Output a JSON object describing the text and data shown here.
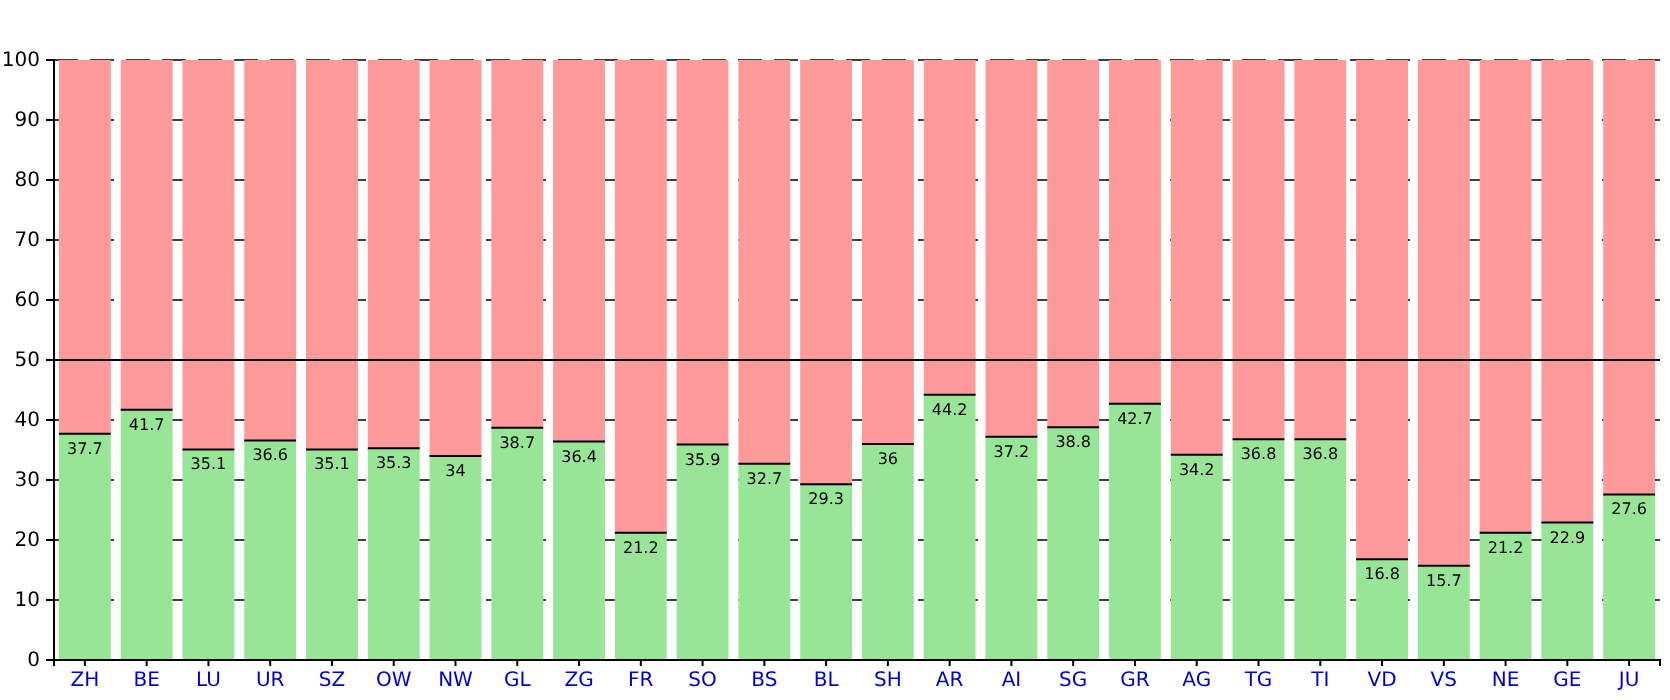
{
  "chart_data": {
    "type": "bar",
    "stacked": true,
    "categories": [
      "ZH",
      "BE",
      "LU",
      "UR",
      "SZ",
      "OW",
      "NW",
      "GL",
      "ZG",
      "FR",
      "SO",
      "BS",
      "BL",
      "SH",
      "AR",
      "AI",
      "SG",
      "GR",
      "AG",
      "TG",
      "TI",
      "VD",
      "VS",
      "NE",
      "GE",
      "JU"
    ],
    "series": [
      {
        "color": "#98e598",
        "values": [
          37.7,
          41.7,
          35.1,
          36.6,
          35.1,
          35.3,
          34,
          38.7,
          36.4,
          21.2,
          35.9,
          32.7,
          29.3,
          36,
          44.2,
          37.2,
          38.8,
          42.7,
          34.2,
          36.8,
          36.8,
          16.8,
          15.7,
          21.2,
          22.9,
          27.6
        ],
        "value_labels": [
          "37.7",
          "41.7",
          "35.1",
          "36.6",
          "35.1",
          "35.3",
          "34",
          "38.7",
          "36.4",
          "21.2",
          "35.9",
          "32.7",
          "29.3",
          "36",
          "44.2",
          "37.2",
          "38.8",
          "42.7",
          "34.2",
          "36.8",
          "36.8",
          "16.8",
          "15.7",
          "21.2",
          "22.9",
          "27.6"
        ]
      },
      {
        "color": "#ff9a9a",
        "values": [
          62.3,
          58.3,
          64.9,
          63.4,
          64.9,
          64.7,
          66,
          61.3,
          63.6,
          78.8,
          64.1,
          67.3,
          70.7,
          64,
          55.8,
          62.8,
          61.2,
          57.3,
          65.8,
          63.2,
          63.2,
          83.2,
          84.3,
          78.8,
          77.1,
          72.4
        ]
      }
    ],
    "ylim": [
      0,
      100
    ],
    "yticks": [
      0,
      10,
      20,
      30,
      40,
      50,
      60,
      70,
      80,
      90,
      100
    ],
    "grid": "y",
    "ref_lines": [
      {
        "axis": "y",
        "value": 50,
        "color": "#000000"
      }
    ]
  }
}
